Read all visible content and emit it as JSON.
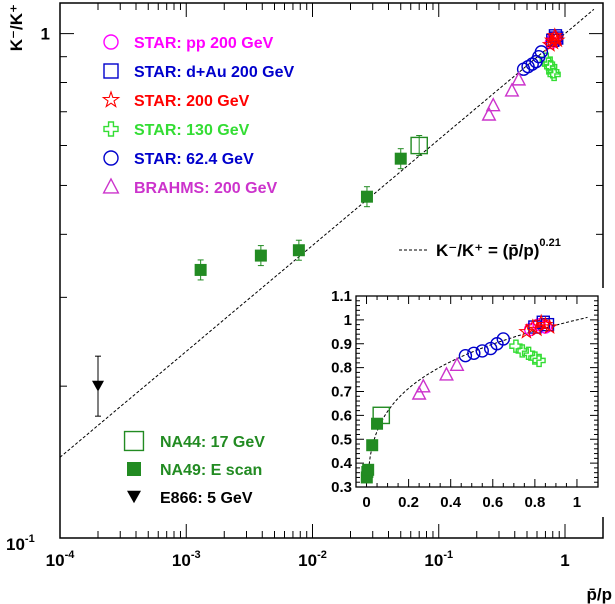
{
  "chart_data": {
    "type": "scatter",
    "x_scale": "log",
    "y_scale": "log",
    "xlim": [
      0.0001,
      2
    ],
    "ylim": [
      0.1,
      1.15
    ],
    "xlabel": "p̄/p",
    "ylabel": "K⁻/K⁺",
    "x_ticks": [
      {
        "v": 0.0001,
        "label": "10",
        "sup": "-4"
      },
      {
        "v": 0.001,
        "label": "10",
        "sup": "-3"
      },
      {
        "v": 0.01,
        "label": "10",
        "sup": "-2"
      },
      {
        "v": 0.1,
        "label": "10",
        "sup": "-1"
      },
      {
        "v": 1,
        "label": "1",
        "sup": ""
      }
    ],
    "y_ticks": [
      {
        "v": 0.1,
        "label": "10",
        "sup": "-1"
      },
      {
        "v": 1,
        "label": "1",
        "sup": ""
      }
    ],
    "fit": {
      "label": "K⁻/K⁺ = (p̄/p)",
      "exponent": "0.21",
      "power": 0.21
    },
    "series": [
      {
        "name": "STAR: pp 200 GeV",
        "marker": "open-circle",
        "color": "#ff00ff",
        "points": [
          [
            0.78,
            0.96
          ],
          [
            0.82,
            0.98
          ],
          [
            0.85,
            0.97
          ]
        ]
      },
      {
        "name": "STAR: d+Au 200 GeV",
        "marker": "open-square",
        "color": "#0000cc",
        "points": [
          [
            0.8,
            0.97
          ],
          [
            0.84,
            0.99
          ],
          [
            0.86,
            0.98
          ]
        ]
      },
      {
        "name": "STAR: 200 GeV",
        "marker": "open-star",
        "color": "#ff0000",
        "points": [
          [
            0.76,
            0.95
          ],
          [
            0.79,
            0.97
          ],
          [
            0.81,
            0.96
          ],
          [
            0.83,
            0.99
          ],
          [
            0.85,
            0.98
          ],
          [
            0.87,
            0.97
          ]
        ]
      },
      {
        "name": "STAR: 130 GeV",
        "marker": "open-cross",
        "color": "#33dd33",
        "points": [
          [
            0.71,
            0.89
          ],
          [
            0.74,
            0.87
          ],
          [
            0.77,
            0.86
          ],
          [
            0.8,
            0.84
          ],
          [
            0.82,
            0.83
          ]
        ]
      },
      {
        "name": "STAR: 62.4 GeV",
        "marker": "open-circle",
        "color": "#0000cc",
        "points": [
          [
            0.47,
            0.85
          ],
          [
            0.51,
            0.86
          ],
          [
            0.55,
            0.87
          ],
          [
            0.59,
            0.88
          ],
          [
            0.62,
            0.9
          ],
          [
            0.65,
            0.92
          ]
        ]
      },
      {
        "name": "BRAHMS: 200 GeV",
        "marker": "open-triangle",
        "color": "#cc33cc",
        "points": [
          [
            0.25,
            0.69
          ],
          [
            0.27,
            0.72
          ],
          [
            0.38,
            0.77
          ],
          [
            0.43,
            0.81
          ]
        ]
      },
      {
        "name": "NA44: 17 GeV",
        "marker": "open-square-large",
        "color": "#228b22",
        "points": [
          [
            0.07,
            0.6
          ]
        ]
      },
      {
        "name": "NA49: E scan",
        "marker": "filled-square",
        "color": "#228b22",
        "points": [
          [
            0.0013,
            0.34
          ],
          [
            0.0039,
            0.363
          ],
          [
            0.0078,
            0.372
          ],
          [
            0.027,
            0.475
          ],
          [
            0.05,
            0.565
          ]
        ]
      },
      {
        "name": "E866: 5 GeV",
        "marker": "filled-triangle-down",
        "color": "#000000",
        "points": [
          [
            0.0002,
            0.2
          ]
        ]
      }
    ],
    "inset": {
      "type": "scatter",
      "xlim": [
        -0.05,
        1.1
      ],
      "ylim": [
        0.3,
        1.1
      ],
      "x_ticks": [
        {
          "v": 0,
          "label": "0"
        },
        {
          "v": 0.2,
          "label": "0.2"
        },
        {
          "v": 0.4,
          "label": "0.4"
        },
        {
          "v": 0.6,
          "label": "0.6"
        },
        {
          "v": 0.8,
          "label": "0.8"
        },
        {
          "v": 1,
          "label": "1"
        }
      ],
      "y_ticks": [
        {
          "v": 0.3,
          "label": "0.3"
        },
        {
          "v": 0.4,
          "label": "0.4"
        },
        {
          "v": 0.5,
          "label": "0.5"
        },
        {
          "v": 0.6,
          "label": "0.6"
        },
        {
          "v": 0.7,
          "label": "0.7"
        },
        {
          "v": 0.8,
          "label": "0.8"
        },
        {
          "v": 0.9,
          "label": "0.9"
        },
        {
          "v": 1,
          "label": "1"
        },
        {
          "v": 1.1,
          "label": "1.1"
        }
      ]
    }
  }
}
